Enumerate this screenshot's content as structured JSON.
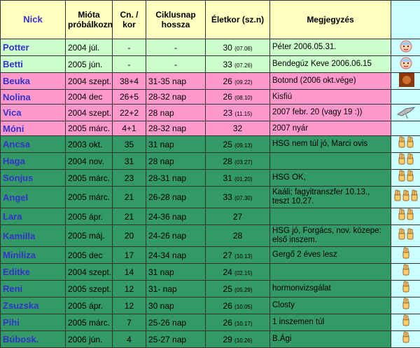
{
  "header": {
    "columns": [
      "Nick",
      "Mióta próbálkoznak",
      "Cn. / kor",
      "Ciklusnap hossza",
      "Életkor (sz.n)",
      "Megjegyzés"
    ]
  },
  "table": {
    "rows": [
      {
        "nick": "Potter",
        "since": "2004 júl.",
        "cycles": "-",
        "cycle_length": "-",
        "age": "30",
        "birthday": "(07.06)",
        "note": "Péter 2006.05.31."
      },
      {
        "nick": "Betti",
        "since": "2005 jún.",
        "cycles": "-",
        "cycle_length": "-",
        "age": "33",
        "birthday": "(07.26)",
        "note": "Bendegúz Keve 2006.06.15"
      },
      {
        "nick": "Beuka",
        "since": "2004 szept.",
        "cycles": "38+4",
        "cycle_length": "31-35 nap",
        "age": "26",
        "birthday": "(09.22)",
        "note": "Botond (2006 okt.vége)"
      },
      {
        "nick": "Nolina",
        "since": "2004 dec",
        "cycles": "26+5",
        "cycle_length": "28-32 nap",
        "age": "26",
        "birthday": "(08.10)",
        "note": "Kisfiú"
      },
      {
        "nick": "Vica",
        "since": "2004 szept.",
        "cycles": "22+2",
        "cycle_length": "28 nap",
        "age": "23",
        "birthday": "(11.15)",
        "note": "2007 febr. 20 (vagy 19 :))"
      },
      {
        "nick": "Móni",
        "since": "2005 márc.",
        "cycles": "4+1",
        "cycle_length": "28-32 nap",
        "age": "32",
        "note": "2007 nyár"
      },
      {
        "nick": "Ancsa",
        "since": "2003 okt.",
        "cycles": "35",
        "cycle_length": "31 nap",
        "age": "25",
        "birthday": "(09.13)",
        "note": "HSG nem túl jó, Marci ovis"
      },
      {
        "nick": "Haga",
        "since": "2004 nov.",
        "cycles": "31",
        "cycle_length": "28 nap",
        "age": "28",
        "birthday": "(03.27)"
      },
      {
        "nick": "Sonjus",
        "since": "2005 márc.",
        "cycles": "23",
        "cycle_length": "28-31 nap",
        "age": "31",
        "birthday": "(01.20)",
        "note": "HSG OK,"
      },
      {
        "nick": "Angel",
        "since": "2005 márc.",
        "cycles": "21",
        "cycle_length": "26-28 nap",
        "age": "33",
        "birthday": "(07.30)",
        "note": "Kaáli; fagyitranszfer 10.13., teszt 10.27."
      },
      {
        "nick": "Lara",
        "since": "2005 ápr.",
        "cycles": "21",
        "cycle_length": "24-36 nap",
        "age": "27"
      },
      {
        "nick": "Kamilla",
        "since": "2005 máj.",
        "cycles": "20",
        "cycle_length": "24-26 nap",
        "age": "28",
        "note": "HSG jó, Forgács, nov. közepe: első inszem."
      },
      {
        "nick": "Miniliza",
        "since": "2005 dec",
        "cycles": "17",
        "cycle_length": "24-34 nap",
        "age": "27",
        "birthday": "(10.13)",
        "note": "Gergő 2 éves lesz"
      },
      {
        "nick": "Editke",
        "since": "2004 szept.",
        "cycles": "14",
        "cycle_length": "31 nap",
        "age": "24",
        "birthday": "(02.15)"
      },
      {
        "nick": "Reni",
        "since": "2005 szept.",
        "cycles": "12",
        "cycle_length": "31- nap",
        "age": "25",
        "birthday": "(05.29)",
        "note": "hormonvizsgálat"
      },
      {
        "nick": "Zsuzska",
        "since": "2005 ápr.",
        "cycles": "12",
        "cycle_length": "30 nap",
        "age": "26",
        "birthday": "(10.05)",
        "note": "Closty"
      },
      {
        "nick": "Pihi",
        "since": "2005 márc.",
        "cycles": "7",
        "cycle_length": "25-26 nap",
        "age": "26",
        "birthday": "(10.17)",
        "note": "1 inszemen túl"
      },
      {
        "nick": "Búbosk.",
        "since": "2006 jún.",
        "cycles": "4",
        "cycle_length": "25-27 nap",
        "age": "29",
        "birthday": "(10.26)",
        "note": "B.Ági"
      }
    ]
  }
}
